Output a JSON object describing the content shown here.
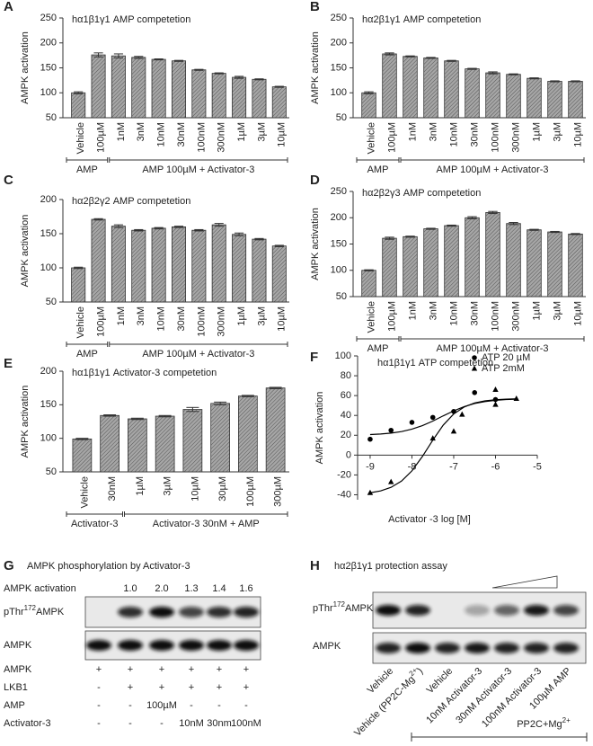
{
  "chart_data": [
    {
      "type": "bar",
      "label": "A",
      "title": "hα1β1γ1 AMP competetion",
      "y_label": "AMPK activation",
      "color": "#a6a6a6",
      "categories": [
        "Vehicle",
        "100µM",
        "1nM",
        "3nM",
        "10nM",
        "30nM",
        "100nM",
        "300nM",
        "1µM",
        "3µM",
        "10µM"
      ],
      "values": [
        100,
        176,
        174,
        171,
        167,
        164,
        146,
        139,
        131,
        127,
        112
      ],
      "errors": [
        2,
        4,
        4,
        2,
        1,
        1,
        1,
        1,
        2,
        1,
        1
      ],
      "groups": [
        "AMP",
        "AMP 100µM + Activator-3"
      ],
      "ylim": [
        50,
        250
      ],
      "yticks": [
        50,
        100,
        150,
        200,
        250
      ]
    },
    {
      "type": "bar",
      "label": "B",
      "title": "hα2β1γ1 AMP competetion",
      "y_label": "AMPK activation",
      "color": "#a6a6a6",
      "categories": [
        "Vehicle",
        "100µM",
        "1nM",
        "3nM",
        "10nM",
        "30nM",
        "100nM",
        "300nM",
        "1µM",
        "3µM",
        "10µM"
      ],
      "values": [
        100,
        178,
        173,
        170,
        164,
        148,
        140,
        137,
        129,
        123,
        123
      ],
      "errors": [
        2,
        2,
        1,
        1,
        1,
        1,
        2,
        1,
        1,
        1,
        1
      ],
      "groups": [
        "AMP",
        "AMP 100µM + Activator-3"
      ],
      "ylim": [
        50,
        250
      ],
      "yticks": [
        50,
        100,
        150,
        200,
        250
      ]
    },
    {
      "type": "bar",
      "label": "C",
      "title": "hα2β2γ2 AMP competetion",
      "y_label": "AMPK activation",
      "color": "#a6a6a6",
      "categories": [
        "Vehicle",
        "100µM",
        "1nM",
        "3nM",
        "10nM",
        "30nM",
        "100nM",
        "300nM",
        "1µM",
        "3µM",
        "10µM"
      ],
      "values": [
        100,
        171,
        161,
        155,
        158,
        160,
        155,
        163,
        149,
        142,
        132
      ],
      "errors": [
        1,
        1,
        2,
        1,
        1,
        1,
        1,
        2,
        2,
        1,
        1
      ],
      "groups": [
        "AMP",
        "AMP 100µM + Activator-3"
      ],
      "ylim": [
        50,
        200
      ],
      "yticks": [
        50,
        100,
        150,
        200
      ]
    },
    {
      "type": "bar",
      "label": "D",
      "title": "hα2β2γ3 AMP competetion",
      "y_label": "AMPK activation",
      "color": "#a6a6a6",
      "categories": [
        "Vehicle",
        "100µM",
        "1nM",
        "3nM",
        "10nM",
        "30nM",
        "100nM",
        "300nM",
        "1µM",
        "3µM",
        "10µM"
      ],
      "values": [
        100,
        161,
        164,
        179,
        185,
        200,
        210,
        189,
        177,
        173,
        169
      ],
      "errors": [
        1,
        2,
        1,
        1,
        1,
        2,
        2,
        2,
        1,
        1,
        1
      ],
      "groups": [
        "AMP",
        "AMP 100µM + Activator-3"
      ],
      "ylim": [
        50,
        250
      ],
      "yticks": [
        50,
        100,
        150,
        200,
        250
      ]
    },
    {
      "type": "bar",
      "label": "E",
      "title": "hα1β1γ1 Activator-3 competetion",
      "y_label": "AMPK activation",
      "color": "#a6a6a6",
      "categories": [
        "Vehicle",
        "30nM",
        "1µM",
        "3µM",
        "10µM",
        "30µM",
        "100µM",
        "300µM"
      ],
      "values": [
        99,
        134,
        129,
        133,
        143,
        152,
        163,
        175
      ],
      "errors": [
        1,
        1,
        1,
        1,
        3,
        2,
        1,
        1
      ],
      "groups": [
        "Activator-3",
        "Activator-3 30nM + AMP"
      ],
      "ylim": [
        50,
        200
      ],
      "yticks": [
        50,
        100,
        150,
        200
      ]
    },
    {
      "type": "scatter",
      "label": "F",
      "title": "hα1β1γ1 ATP competetion",
      "x_label": "Activator -3 log [M]",
      "y_label": "AMPK activation",
      "xlim": [
        -9.3,
        -5
      ],
      "xticks": [
        -9,
        -8,
        -7,
        -6,
        -5
      ],
      "ylim": [
        -45,
        100
      ],
      "yticks": [
        -40,
        -20,
        0,
        20,
        40,
        60,
        80,
        100
      ],
      "legend": "upper right",
      "series": [
        {
          "name": "ATP 20 µM",
          "marker": "circle",
          "color": "#000000",
          "x": [
            -9,
            -8.5,
            -8,
            -7.5,
            -7,
            -6.5,
            -6
          ],
          "values": [
            16,
            25,
            33,
            38,
            44,
            63,
            56
          ],
          "fit_x": [
            -9,
            -8.75,
            -8.5,
            -8.25,
            -8,
            -7.75,
            -7.5,
            -7.25,
            -7,
            -6.75,
            -6.5,
            -6.25,
            -6,
            -5.75,
            -5.5
          ],
          "fit_values": [
            20.7,
            21.3,
            22.2,
            23.7,
            26.2,
            29.7,
            34.3,
            39.6,
            44.6,
            48.9,
            52.0,
            54.0,
            55.2,
            56.0,
            56.4
          ]
        },
        {
          "name": "ATP 2mM",
          "marker": "triangle",
          "color": "#000000",
          "x": [
            -9,
            -8.5,
            -7.5,
            -7,
            -6.8,
            -6,
            -6,
            -5.5
          ],
          "values": [
            -38,
            -27,
            17,
            24,
            41,
            66,
            51,
            57
          ],
          "fit_x": [
            -9,
            -8.75,
            -8.5,
            -8.25,
            -8,
            -7.75,
            -7.5,
            -7.25,
            -7,
            -6.75,
            -6.5,
            -6.25,
            -6,
            -5.75,
            -5.5
          ],
          "fit_values": [
            -38.0,
            -36.1,
            -32.5,
            -26.2,
            -15.9,
            -1.4,
            15.1,
            30.3,
            41.5,
            48.5,
            52.6,
            54.7,
            55.8,
            56.4,
            56.7
          ]
        }
      ]
    }
  ],
  "panel_g": {
    "label": "G",
    "title": "AMPK phosphorylation by Activator-3",
    "activation_label": "AMPK activation",
    "activation_values": [
      "1.0",
      "2.0",
      "1.3",
      "1.4",
      "1.6"
    ],
    "blot_labels": [
      {
        "text": "pThr",
        "sup": "172",
        "after": "AMPK"
      },
      "AMPK"
    ],
    "rows": [
      {
        "name": "AMPK",
        "cells": [
          "+",
          "+",
          "+",
          "+",
          "+",
          "+"
        ]
      },
      {
        "name": "LKB1",
        "cells": [
          "-",
          "+",
          "+",
          "+",
          "+",
          "+"
        ]
      },
      {
        "name": "AMP",
        "cells": [
          "-",
          "-",
          "100µM",
          "-",
          "-",
          "-"
        ]
      },
      {
        "name": "Activator-3",
        "cells": [
          "-",
          "-",
          "-",
          "10nM",
          "30nm",
          "100nM"
        ]
      }
    ]
  },
  "panel_h": {
    "label": "H",
    "title": "hα2β1γ1 protection assay",
    "blot_labels": [
      {
        "text": "pThr",
        "sup": "172",
        "after": "AMPK"
      },
      "AMPK"
    ],
    "lanes": [
      "Vehicle",
      {
        "text": "Vehicle (PP2C-Mg",
        "sup": "2+",
        "after": ")"
      },
      "Vehicle",
      "10nM Activator-3",
      "30nM Activator-3",
      "100nM Activator-3",
      "100µM AMP"
    ],
    "treatment": {
      "text": "PP2C+Mg",
      "sup": "2+"
    }
  }
}
